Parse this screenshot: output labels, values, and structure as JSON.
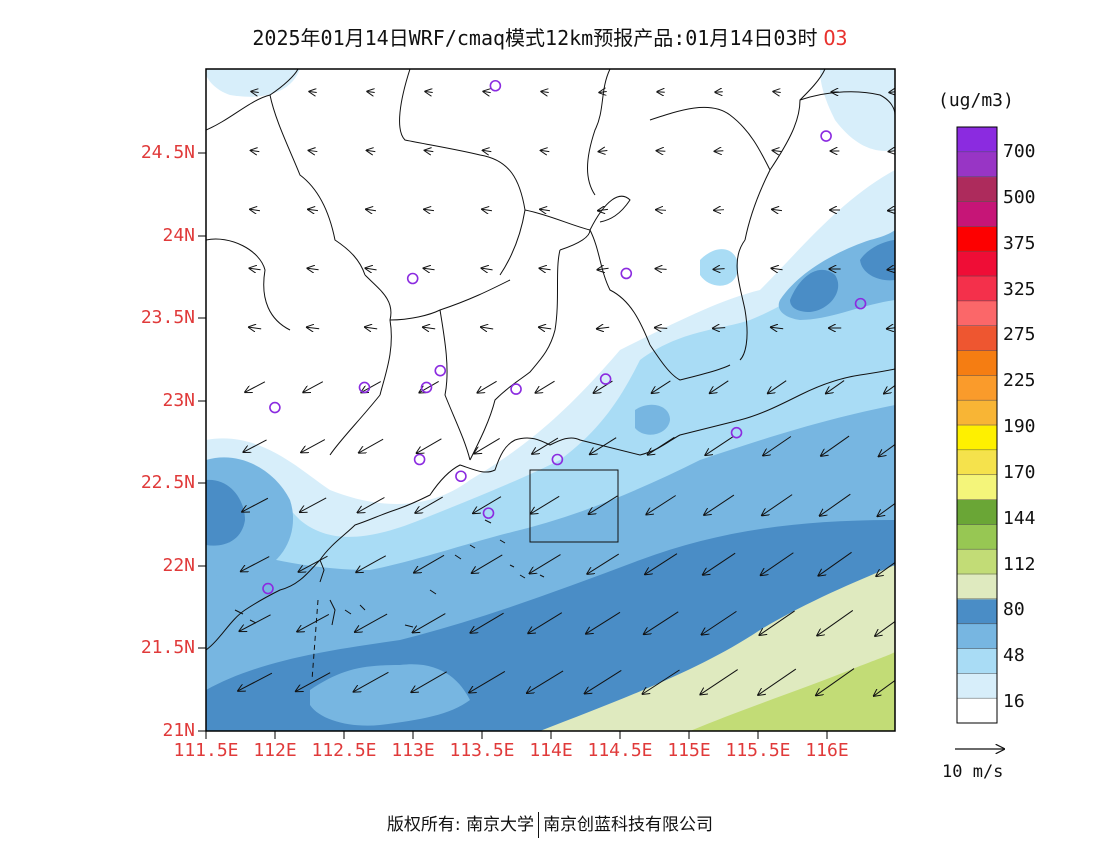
{
  "title": {
    "text": "2025年01月14日WRF/cmaq模式12km预报产品:01月14日03时",
    "pollutant": "O3"
  },
  "axes": {
    "lat_labels": [
      "24.5N",
      "24N",
      "23.5N",
      "23N",
      "22.5N",
      "22N",
      "21.5N",
      "21N"
    ],
    "lon_labels": [
      "111.5E",
      "112E",
      "112.5E",
      "113E",
      "113.5E",
      "114E",
      "114.5E",
      "115E",
      "115.5E",
      "116E"
    ],
    "label_color": "#e03a3a"
  },
  "colorbar": {
    "unit": "(ug/m3)",
    "labels": [
      "700",
      "500",
      "375",
      "325",
      "275",
      "225",
      "190",
      "170",
      "144",
      "112",
      "80",
      "48",
      "16"
    ],
    "colors": [
      "#ffffff",
      "#d7eefa",
      "#a9dcf5",
      "#77b6e1",
      "#4a8dc6",
      "#dfeabf",
      "#c2dc76",
      "#97c753",
      "#6aa636",
      "#f4f57a",
      "#f5e24c",
      "#fef000",
      "#f8b535",
      "#fa9b2b",
      "#f57d12",
      "#ee5630",
      "#fb6769",
      "#f4304b",
      "#ef0d36",
      "#fd0000",
      "#c61577",
      "#ad2b5c",
      "#9835c5",
      "#8b2be0"
    ]
  },
  "wind_reference": "10 m/s",
  "copyright": {
    "prefix": "版权所有:",
    "org1": "南京大学",
    "org2": "南京创蓝科技有限公司"
  },
  "map": {
    "lon_range": [
      111.5,
      116.5
    ],
    "lat_range": [
      21.0,
      24.95
    ],
    "stations": [
      [
        113.6,
        24.85
      ],
      [
        116.0,
        24.55
      ],
      [
        113.0,
        23.7
      ],
      [
        114.55,
        23.73
      ],
      [
        116.25,
        23.55
      ],
      [
        113.2,
        23.15
      ],
      [
        113.1,
        23.05
      ],
      [
        112.65,
        23.05
      ],
      [
        113.75,
        23.04
      ],
      [
        114.4,
        23.1
      ],
      [
        112.0,
        22.93
      ],
      [
        115.35,
        22.78
      ],
      [
        113.05,
        22.62
      ],
      [
        114.05,
        22.62
      ],
      [
        113.35,
        22.52
      ],
      [
        113.55,
        22.3
      ],
      [
        111.95,
        21.85
      ]
    ]
  }
}
